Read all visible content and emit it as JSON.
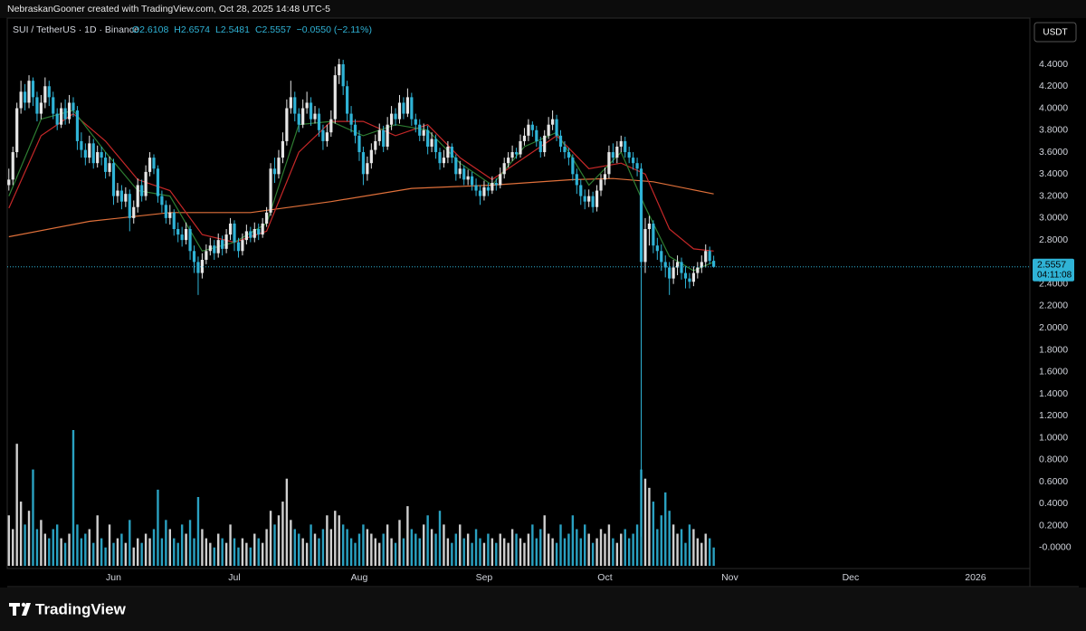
{
  "header": "NebraskanGooner created with TradingView.com, Oct 28, 2025 14:48 UTC-5",
  "chart_data": {
    "type": "candlestick",
    "symbol": "SUI / TetherUS · 1D · Binance",
    "legend_values": [
      "O2.6108",
      "H2.6574",
      "L2.5481",
      "C2.5557",
      "−0.0550 (−2.11%)"
    ],
    "currency": "USDT",
    "countdown": "04:11:08",
    "up_color": "#e6e6e6",
    "down_color": "#2fb3d6",
    "xlim": [
      -0.4,
      253.5
    ],
    "xticks": [
      {
        "value": 26,
        "label": "Jun"
      },
      {
        "value": 56,
        "label": "Jul"
      },
      {
        "value": 87,
        "label": "Aug"
      },
      {
        "value": 118,
        "label": "Sep"
      },
      {
        "value": 148,
        "label": "Oct"
      },
      {
        "value": 179,
        "label": "Nov"
      },
      {
        "value": 209,
        "label": "Dec"
      },
      {
        "value": 240,
        "label": "2026"
      }
    ],
    "ylim": [
      -0.19,
      4.82
    ],
    "yticks": [
      {
        "value": 0,
        "label": "-0.0000"
      },
      {
        "value": 0.2,
        "label": "0.2000"
      },
      {
        "value": 0.4,
        "label": "0.4000"
      },
      {
        "value": 0.6,
        "label": "0.6000"
      },
      {
        "value": 0.8,
        "label": "0.8000"
      },
      {
        "value": 1,
        "label": "1.0000"
      },
      {
        "value": 1.2,
        "label": "1.2000"
      },
      {
        "value": 1.4,
        "label": "1.4000"
      },
      {
        "value": 1.6,
        "label": "1.6000"
      },
      {
        "value": 1.8,
        "label": "1.8000"
      },
      {
        "value": 2,
        "label": "2.0000"
      },
      {
        "value": 2.2,
        "label": "2.2000"
      },
      {
        "value": 2.4,
        "label": "2.4000"
      },
      {
        "value": 2.8,
        "label": "2.8000"
      },
      {
        "value": 3,
        "label": "3.0000"
      },
      {
        "value": 3.2,
        "label": "3.2000"
      },
      {
        "value": 3.4,
        "label": "3.4000"
      },
      {
        "value": 3.6,
        "label": "3.6000"
      },
      {
        "value": 3.8,
        "label": "3.8000"
      },
      {
        "value": 4,
        "label": "4.0000"
      },
      {
        "value": 4.2,
        "label": "4.2000"
      },
      {
        "value": 4.4,
        "label": "4.4000"
      }
    ],
    "open": [
      3.3,
      3.35,
      3.6,
      4.0,
      4.15,
      4.05,
      4.25,
      4.1,
      3.95,
      4.05,
      4.2,
      4.1,
      3.95,
      3.85,
      4.0,
      3.9,
      4.05,
      3.98,
      3.7,
      3.62,
      3.55,
      3.68,
      3.5,
      3.6,
      3.55,
      3.42,
      3.5,
      3.2,
      3.25,
      3.15,
      3.22,
      3.0,
      3.1,
      3.3,
      3.2,
      3.42,
      3.55,
      3.45,
      3.2,
      3.12,
      3.0,
      3.05,
      2.9,
      2.85,
      2.8,
      2.9,
      2.7,
      2.6,
      2.5,
      2.62,
      2.7,
      2.75,
      2.68,
      2.8,
      2.72,
      2.85,
      2.95,
      2.78,
      2.7,
      2.8,
      2.88,
      2.82,
      2.9,
      2.85,
      2.95,
      3.05,
      3.45,
      3.4,
      3.55,
      3.7,
      4.0,
      4.1,
      3.95,
      3.85,
      4.0,
      4.05,
      3.9,
      3.95,
      3.8,
      3.7,
      3.78,
      3.9,
      4.3,
      4.4,
      4.2,
      3.95,
      3.85,
      3.75,
      3.6,
      3.4,
      3.5,
      3.62,
      3.7,
      3.8,
      3.65,
      3.85,
      3.95,
      3.9,
      4.05,
      3.95,
      4.1,
      3.9,
      3.85,
      3.75,
      3.8,
      3.65,
      3.72,
      3.6,
      3.5,
      3.55,
      3.65,
      3.55,
      3.4,
      3.45,
      3.35,
      3.38,
      3.3,
      3.25,
      3.2,
      3.28,
      3.25,
      3.32,
      3.3,
      3.4,
      3.5,
      3.55,
      3.6,
      3.58,
      3.7,
      3.75,
      3.85,
      3.8,
      3.7,
      3.6,
      3.75,
      3.85,
      3.9,
      3.75,
      3.65,
      3.6,
      3.55,
      3.4,
      3.3,
      3.2,
      3.15,
      3.2,
      3.1,
      3.25,
      3.35,
      3.4,
      3.6,
      3.55,
      3.65,
      3.7,
      3.6,
      3.55,
      3.5,
      3.45,
      2.6,
      2.9,
      2.95,
      2.75,
      2.7,
      2.6,
      2.55,
      2.45,
      2.55,
      2.6,
      2.5,
      2.45,
      2.42,
      2.5,
      2.55,
      2.6,
      2.7,
      2.6108
    ],
    "high": [
      3.45,
      3.65,
      4.05,
      4.25,
      4.22,
      4.3,
      4.28,
      4.15,
      4.12,
      4.28,
      4.25,
      4.15,
      4.0,
      4.05,
      4.08,
      4.12,
      4.1,
      4.02,
      3.78,
      3.68,
      3.75,
      3.72,
      3.66,
      3.65,
      3.6,
      3.56,
      3.54,
      3.32,
      3.3,
      3.28,
      3.26,
      3.16,
      3.36,
      3.35,
      3.48,
      3.6,
      3.58,
      3.48,
      3.25,
      3.16,
      3.12,
      3.08,
      2.96,
      2.92,
      2.96,
      2.93,
      2.75,
      2.65,
      2.68,
      2.76,
      2.82,
      2.8,
      2.86,
      2.84,
      2.9,
      3.0,
      2.98,
      2.82,
      2.86,
      2.94,
      2.92,
      2.96,
      2.95,
      3.0,
      3.1,
      3.5,
      3.55,
      3.62,
      3.78,
      4.08,
      4.25,
      4.15,
      4.0,
      4.08,
      4.15,
      4.1,
      4.02,
      4.0,
      3.85,
      3.85,
      3.98,
      4.38,
      4.45,
      4.44,
      4.25,
      4.02,
      3.9,
      3.8,
      3.65,
      3.56,
      3.68,
      3.76,
      3.86,
      3.84,
      3.92,
      4.02,
      4.0,
      4.12,
      4.1,
      4.18,
      4.14,
      3.95,
      3.9,
      3.86,
      3.84,
      3.78,
      3.76,
      3.64,
      3.62,
      3.7,
      3.68,
      3.58,
      3.52,
      3.48,
      3.44,
      3.42,
      3.36,
      3.3,
      3.34,
      3.32,
      3.38,
      3.36,
      3.46,
      3.55,
      3.6,
      3.66,
      3.64,
      3.76,
      3.82,
      3.9,
      3.88,
      3.84,
      3.74,
      3.8,
      3.92,
      3.98,
      3.94,
      3.8,
      3.7,
      3.64,
      3.58,
      3.45,
      3.35,
      3.26,
      3.26,
      3.24,
      3.3,
      3.4,
      3.46,
      3.66,
      3.68,
      3.7,
      3.75,
      3.74,
      3.65,
      3.6,
      3.55,
      3.5,
      3.0,
      3.02,
      2.98,
      2.82,
      2.76,
      2.66,
      2.6,
      2.62,
      2.66,
      2.64,
      2.56,
      2.5,
      2.56,
      2.6,
      2.66,
      2.76,
      2.74,
      2.6574
    ],
    "low": [
      3.25,
      3.3,
      3.55,
      3.95,
      3.98,
      4.0,
      4.02,
      3.88,
      3.9,
      4.0,
      4.02,
      3.9,
      3.8,
      3.82,
      3.85,
      3.86,
      3.92,
      3.62,
      3.55,
      3.48,
      3.5,
      3.45,
      3.46,
      3.48,
      3.36,
      3.38,
      3.12,
      3.14,
      3.08,
      3.1,
      2.88,
      2.95,
      3.05,
      3.15,
      3.16,
      3.38,
      3.4,
      3.14,
      3.05,
      2.95,
      2.94,
      2.84,
      2.78,
      2.74,
      2.76,
      2.62,
      2.5,
      2.3,
      2.45,
      2.58,
      2.66,
      2.62,
      2.64,
      2.66,
      2.68,
      2.8,
      2.7,
      2.64,
      2.66,
      2.76,
      2.78,
      2.78,
      2.8,
      2.82,
      2.92,
      3.02,
      3.32,
      3.36,
      3.5,
      3.66,
      3.95,
      3.88,
      3.78,
      3.82,
      3.95,
      3.84,
      3.86,
      3.74,
      3.62,
      3.65,
      3.74,
      3.86,
      4.22,
      4.12,
      3.88,
      3.78,
      3.68,
      3.52,
      3.3,
      3.34,
      3.45,
      3.58,
      3.66,
      3.6,
      3.62,
      3.8,
      3.84,
      3.86,
      3.9,
      3.92,
      3.84,
      3.78,
      3.7,
      3.7,
      3.58,
      3.6,
      3.54,
      3.44,
      3.46,
      3.5,
      3.5,
      3.34,
      3.36,
      3.3,
      3.3,
      3.25,
      3.2,
      3.12,
      3.16,
      3.2,
      3.22,
      3.25,
      3.27,
      3.36,
      3.46,
      3.52,
      3.54,
      3.55,
      3.66,
      3.7,
      3.74,
      3.65,
      3.55,
      3.56,
      3.72,
      3.8,
      3.7,
      3.6,
      3.54,
      3.48,
      3.34,
      3.22,
      3.12,
      3.08,
      3.1,
      3.05,
      3.06,
      3.2,
      3.3,
      3.36,
      3.5,
      3.5,
      3.6,
      3.55,
      3.5,
      3.44,
      3.38,
      0.1,
      2.5,
      2.75,
      2.68,
      2.62,
      2.52,
      2.46,
      2.3,
      2.4,
      2.48,
      2.44,
      2.36,
      2.36,
      2.38,
      2.45,
      2.5,
      2.55,
      2.58,
      2.5481
    ],
    "close": [
      3.35,
      3.6,
      4.0,
      4.15,
      4.05,
      4.25,
      4.1,
      3.95,
      4.05,
      4.2,
      4.1,
      3.95,
      3.85,
      4.0,
      3.9,
      4.05,
      3.98,
      3.7,
      3.62,
      3.55,
      3.68,
      3.5,
      3.6,
      3.55,
      3.42,
      3.5,
      3.2,
      3.25,
      3.15,
      3.22,
      3.0,
      3.1,
      3.3,
      3.2,
      3.42,
      3.55,
      3.45,
      3.2,
      3.12,
      3.0,
      3.05,
      2.9,
      2.85,
      2.8,
      2.9,
      2.7,
      2.6,
      2.5,
      2.62,
      2.7,
      2.75,
      2.68,
      2.8,
      2.72,
      2.85,
      2.95,
      2.78,
      2.7,
      2.8,
      2.88,
      2.82,
      2.9,
      2.85,
      2.95,
      3.05,
      3.45,
      3.4,
      3.55,
      3.7,
      4.0,
      4.1,
      3.95,
      3.85,
      4.0,
      4.05,
      3.9,
      3.95,
      3.8,
      3.7,
      3.78,
      3.9,
      4.3,
      4.4,
      4.2,
      3.95,
      3.85,
      3.75,
      3.6,
      3.4,
      3.5,
      3.62,
      3.7,
      3.8,
      3.65,
      3.85,
      3.95,
      3.9,
      4.05,
      3.95,
      4.1,
      3.9,
      3.85,
      3.75,
      3.8,
      3.65,
      3.72,
      3.6,
      3.5,
      3.55,
      3.65,
      3.55,
      3.4,
      3.45,
      3.35,
      3.38,
      3.3,
      3.25,
      3.2,
      3.28,
      3.25,
      3.32,
      3.3,
      3.4,
      3.5,
      3.55,
      3.6,
      3.58,
      3.7,
      3.75,
      3.85,
      3.8,
      3.7,
      3.6,
      3.75,
      3.85,
      3.9,
      3.75,
      3.65,
      3.6,
      3.55,
      3.4,
      3.3,
      3.2,
      3.15,
      3.2,
      3.1,
      3.25,
      3.35,
      3.4,
      3.6,
      3.55,
      3.65,
      3.7,
      3.6,
      3.55,
      3.5,
      3.45,
      2.6,
      2.9,
      2.95,
      2.75,
      2.7,
      2.6,
      2.55,
      2.45,
      2.55,
      2.6,
      2.5,
      2.45,
      2.42,
      2.5,
      2.55,
      2.6,
      2.7,
      2.61,
      2.5557
    ],
    "volume": [
      55,
      40,
      133,
      70,
      45,
      60,
      105,
      40,
      50,
      35,
      30,
      40,
      45,
      30,
      25,
      35,
      148,
      45,
      30,
      35,
      40,
      25,
      55,
      30,
      20,
      45,
      25,
      30,
      35,
      25,
      50,
      20,
      30,
      25,
      35,
      30,
      40,
      83,
      30,
      50,
      40,
      30,
      25,
      45,
      35,
      50,
      30,
      75,
      40,
      30,
      25,
      20,
      35,
      30,
      25,
      45,
      30,
      20,
      30,
      25,
      20,
      35,
      30,
      25,
      40,
      60,
      45,
      55,
      70,
      95,
      50,
      40,
      35,
      30,
      25,
      45,
      35,
      30,
      40,
      55,
      40,
      60,
      55,
      45,
      40,
      30,
      25,
      35,
      45,
      40,
      35,
      30,
      25,
      35,
      45,
      30,
      25,
      50,
      30,
      65,
      40,
      35,
      30,
      45,
      55,
      40,
      35,
      60,
      45,
      30,
      25,
      35,
      45,
      30,
      35,
      25,
      40,
      30,
      25,
      35,
      30,
      25,
      35,
      30,
      25,
      40,
      35,
      30,
      25,
      35,
      45,
      30,
      40,
      55,
      35,
      30,
      25,
      45,
      30,
      35,
      55,
      40,
      30,
      45,
      35,
      25,
      30,
      40,
      35,
      45,
      30,
      25,
      35,
      40,
      30,
      35,
      45,
      105,
      95,
      85,
      70,
      40,
      55,
      80,
      60,
      45,
      35,
      40,
      25,
      45,
      40,
      30,
      25,
      35,
      30,
      20
    ],
    "lines": [
      {
        "color": "#e0703a",
        "x": [
          0,
          20,
          40,
          60,
          80,
          100,
          120,
          140,
          150,
          160,
          175
        ],
        "values": [
          2.83,
          2.97,
          3.05,
          3.05,
          3.15,
          3.27,
          3.3,
          3.35,
          3.36,
          3.33,
          3.22
        ]
      },
      {
        "color": "#c62828",
        "x": [
          0,
          8,
          16,
          24,
          32,
          40,
          48,
          56,
          64,
          72,
          80,
          88,
          96,
          104,
          112,
          120,
          128,
          136,
          144,
          152,
          158,
          164,
          170,
          175
        ],
        "values": [
          3.09,
          3.75,
          3.95,
          3.7,
          3.35,
          3.25,
          2.85,
          2.78,
          2.88,
          3.6,
          3.88,
          3.88,
          3.75,
          3.85,
          3.55,
          3.35,
          3.55,
          3.75,
          3.45,
          3.5,
          3.4,
          2.9,
          2.72,
          2.7
        ]
      },
      {
        "color": "#2e7d32",
        "x": [
          0,
          8,
          16,
          24,
          32,
          40,
          48,
          56,
          64,
          72,
          80,
          88,
          96,
          104,
          112,
          120,
          128,
          136,
          144,
          152,
          158,
          164,
          170,
          175
        ],
        "values": [
          3.2,
          3.9,
          3.98,
          3.6,
          3.25,
          3.2,
          2.7,
          2.78,
          2.95,
          3.85,
          3.88,
          3.75,
          3.85,
          3.8,
          3.5,
          3.3,
          3.65,
          3.78,
          3.3,
          3.6,
          3.1,
          2.65,
          2.52,
          2.6
        ]
      }
    ]
  },
  "footer": {
    "brand": "TradingView"
  }
}
